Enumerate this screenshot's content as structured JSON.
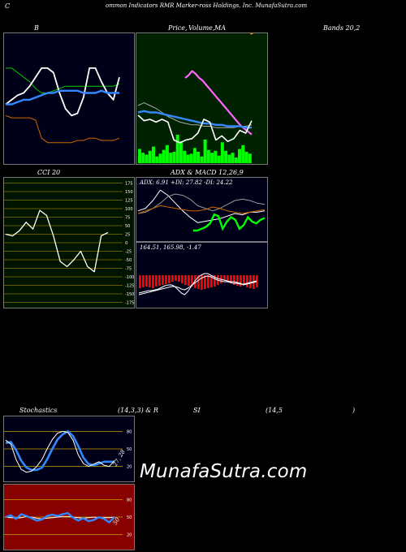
{
  "header": {
    "c_letter": "C",
    "title": "ommon  Indicators  RMR  Marker-ross Holdings,  Inc. MunafaSutra.com"
  },
  "row1": {
    "left_label": "B",
    "mid_label_a": "Price,",
    "mid_label_b": "Volume,",
    "mid_label_c": "MA",
    "right_label": "Bands 20,2"
  },
  "row2": {
    "left_label": "CCI 20",
    "mid_label": "ADX  & MACD 12,26,9",
    "adx_text": "ADX: 6.91  +DI: 27.82  -DI: 24.22",
    "macd_text": "164.51,   165.98,  -1.47"
  },
  "row3": {
    "stoch_label": "Stochastics",
    "params_a": "(14,3,3) & R",
    "params_b": "SI",
    "params_c": "(14,5",
    "params_d": ")"
  },
  "watermark": "MunafaSutra.com",
  "colors": {
    "bb_bg": "#000018",
    "price_bg": "#002200",
    "cci_bg": "#001400",
    "adx_bg": "#000018",
    "stoch_bg": "#000018",
    "rsi_bg": "#880000",
    "green_line": "#00cc00",
    "blue_line": "#3388ff",
    "orange_line": "#cc6600",
    "volume": "#00ff00",
    "macd_hist": "#ff0000",
    "grid_gold": "#c8a000"
  },
  "chart_data": [
    {
      "type": "line",
      "name": "bollinger-bands",
      "series": [
        {
          "values": [
            66,
            66,
            64,
            62,
            60,
            57,
            55,
            55,
            56,
            57,
            58,
            58,
            58,
            58,
            58,
            58,
            58,
            58,
            58,
            59
          ]
        },
        {
          "values": [
            50,
            52,
            54,
            55,
            58,
            62,
            66,
            66,
            64,
            55,
            48,
            45,
            46,
            53,
            66,
            66,
            60,
            55,
            52,
            62
          ]
        },
        {
          "values": [
            50,
            50,
            51,
            52,
            52,
            53,
            54,
            55,
            55,
            56,
            56,
            56,
            56,
            55,
            55,
            55,
            56,
            55,
            55,
            55
          ]
        },
        {
          "values": [
            45,
            44,
            44,
            44,
            44,
            43,
            35,
            33,
            33,
            33,
            33,
            33,
            34,
            34,
            35,
            35,
            34,
            34,
            34,
            35
          ]
        }
      ],
      "ylim": [
        25,
        80
      ]
    },
    {
      "type": "line",
      "name": "price-volume-ma",
      "series": [
        {
          "values": [
            80,
            82,
            85,
            83,
            80,
            78,
            75,
            72,
            69,
            66,
            63,
            60,
            57,
            54,
            51,
            48,
            45,
            43,
            41,
            39
          ]
        },
        {
          "values": [
            60,
            62,
            60,
            58,
            55,
            52,
            50,
            48,
            47,
            46,
            46,
            45,
            45,
            44,
            44,
            44,
            44,
            45,
            45,
            46
          ]
        },
        {
          "values": [
            55,
            56,
            55,
            55,
            54,
            53,
            52,
            51,
            50,
            49,
            48,
            47,
            47,
            46,
            46,
            45,
            45,
            45,
            44,
            44
          ]
        },
        {
          "values": [
            53,
            49,
            50,
            48,
            50,
            48,
            35,
            33,
            35,
            36,
            40,
            50,
            48,
            35,
            38,
            34,
            36,
            42,
            40,
            49
          ]
        }
      ],
      "volumes": [
        30,
        22,
        18,
        26,
        35,
        14,
        20,
        28,
        38,
        22,
        24,
        60,
        46,
        26,
        18,
        20,
        32,
        24,
        14,
        50,
        28,
        22,
        26,
        16,
        44,
        26,
        18,
        22,
        12,
        30,
        38,
        24,
        20
      ],
      "ylim": [
        20,
        110
      ]
    },
    {
      "type": "line",
      "name": "cci-20",
      "values": [
        25,
        20,
        35,
        60,
        40,
        95,
        80,
        20,
        -55,
        -70,
        -50,
        -25,
        -70,
        -85,
        20,
        30
      ],
      "ticks": [
        "175",
        "150",
        "125",
        "100",
        "75",
        "50",
        "25",
        "0",
        "-25",
        "-50",
        "-75",
        "-100",
        "-125",
        "-150",
        "-175"
      ],
      "ylim": [
        -200,
        200
      ]
    },
    {
      "type": "line",
      "name": "adx",
      "series": [
        {
          "values": [
            20,
            22,
            24,
            26,
            25,
            24,
            23,
            22,
            22,
            23,
            25,
            24,
            22,
            21,
            20,
            21,
            22,
            23
          ]
        },
        {
          "values": [
            22,
            24,
            30,
            38,
            34,
            28,
            22,
            17,
            13,
            14,
            15,
            16,
            18,
            20,
            19,
            21,
            21,
            22
          ]
        },
        {
          "values": [
            20,
            21,
            24,
            28,
            33,
            35,
            34,
            31,
            26,
            24,
            22,
            24,
            27,
            30,
            31,
            30,
            28,
            27
          ]
        },
        {
          "values": [
            10,
            10,
            12,
            14,
            18,
            28,
            26,
            12,
            20,
            25,
            22,
            12,
            16,
            25,
            20,
            18,
            22,
            24
          ]
        }
      ],
      "adx": 6.91,
      "plus_di": 27.82,
      "minus_di": 24.22
    },
    {
      "type": "bar",
      "name": "macd-histogram",
      "values": [
        1.6,
        1.5,
        1.4,
        1.5,
        1.6,
        1.4,
        1.3,
        1.2,
        1.1,
        1.0,
        0.8,
        0.7,
        0.8,
        1.0,
        1.2,
        1.3,
        1.4,
        1.6,
        1.7,
        1.8,
        1.7,
        1.6,
        1.5,
        1.4,
        1.2,
        1.0,
        0.6,
        0.8,
        1.0,
        1.2,
        1.3,
        1.4,
        1.2,
        1.5,
        1.6,
        1.7,
        1.5
      ],
      "macd": 164.51,
      "signal": 165.98,
      "histogram": -1.47
    },
    {
      "type": "line",
      "name": "stochastics",
      "series": [
        {
          "values": [
            65,
            58,
            32,
            15,
            10,
            12,
            20,
            32,
            50,
            66,
            77,
            80,
            78,
            65,
            40,
            25,
            20,
            24,
            28,
            22,
            20,
            30
          ]
        },
        {
          "values": [
            60,
            62,
            48,
            30,
            18,
            14,
            14,
            18,
            32,
            50,
            66,
            75,
            80,
            72,
            55,
            35,
            24,
            22,
            25,
            28,
            28,
            28
          ]
        }
      ],
      "ticks": [
        "80",
        "50",
        "20"
      ],
      "ylim": [
        0,
        100
      ]
    },
    {
      "type": "line",
      "name": "rsi",
      "series": [
        {
          "values": [
            50,
            49,
            48,
            49,
            51,
            50,
            48,
            47,
            48,
            49,
            50,
            51,
            51,
            50,
            49,
            48,
            49,
            50,
            49,
            49,
            49,
            50
          ]
        },
        {
          "values": [
            50,
            53,
            47,
            55,
            52,
            48,
            44,
            46,
            52,
            54,
            52,
            55,
            57,
            49,
            44,
            48,
            43,
            45,
            50,
            47,
            41,
            50
          ]
        }
      ],
      "ticks": [
        "80",
        "50",
        "20"
      ],
      "ylim": [
        0,
        100
      ]
    }
  ]
}
